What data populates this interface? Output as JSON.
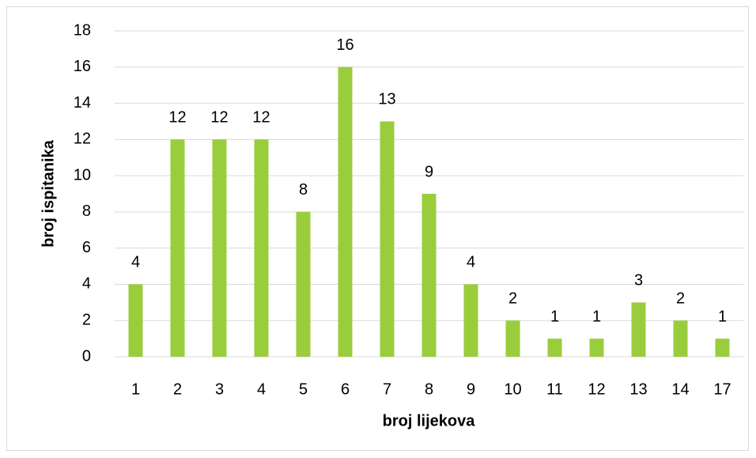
{
  "chart_data": {
    "type": "bar",
    "x_label": "broj lijekova",
    "y_label": "broj ispitanika",
    "categories": [
      "1",
      "2",
      "3",
      "4",
      "5",
      "6",
      "7",
      "8",
      "9",
      "10",
      "11",
      "12",
      "13",
      "14",
      "17"
    ],
    "values": [
      4,
      12,
      12,
      12,
      8,
      16,
      13,
      9,
      4,
      2,
      1,
      1,
      3,
      2,
      1
    ],
    "color": "#9acd3c",
    "ylim": [
      0,
      18
    ],
    "yticks": [
      0,
      2,
      4,
      6,
      8,
      10,
      12,
      14,
      16,
      18
    ],
    "grid": true
  }
}
